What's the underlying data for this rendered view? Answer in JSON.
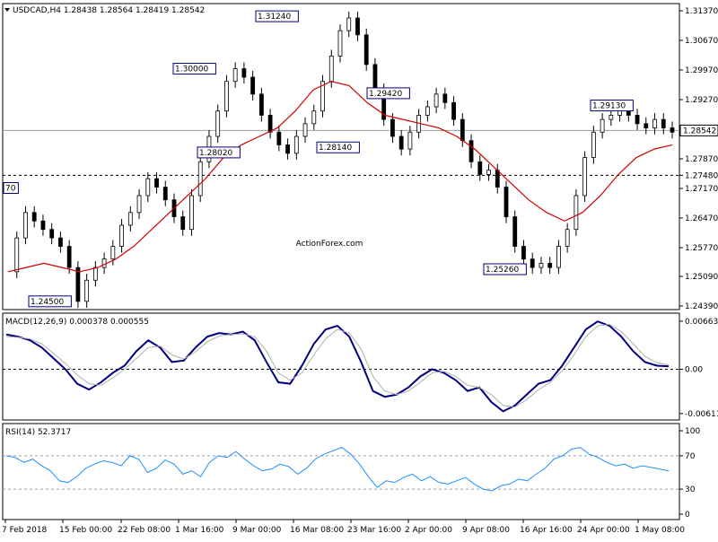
{
  "chart_data": [
    {
      "type": "candlestick",
      "symbol": "USDCAD,H4",
      "header_values": [
        "1.28438",
        "1.28564",
        "1.28419",
        "1.28542"
      ],
      "yaxis_ticks": [
        "1.31370",
        "1.30670",
        "1.29970",
        "1.29270",
        "1.28542",
        "1.27870",
        "1.27480",
        "1.27170",
        "1.26470",
        "1.25770",
        "1.25090",
        "1.24390"
      ],
      "ylim": [
        1.2439,
        1.3137
      ],
      "current_price": "1.28542",
      "horizontal_levels": [
        {
          "value": 1.2854,
          "label": "1.28542",
          "style": "solid-grey"
        },
        {
          "value": 1.2748,
          "label": "1.27480",
          "style": "dashed"
        }
      ],
      "annotations": [
        "70",
        "1.24500",
        "1.30000",
        "1.31240",
        "1.28020",
        "1.28140",
        "1.29420",
        "1.25260",
        "1.29130"
      ],
      "watermark": "ActionForex.com",
      "series": [
        {
          "name": "price",
          "description": "H4 candles",
          "path": [
            1.252,
            1.26,
            1.266,
            1.264,
            1.262,
            1.26,
            1.258,
            1.253,
            1.245,
            1.25,
            1.253,
            1.255,
            1.258,
            1.263,
            1.266,
            1.27,
            1.274,
            1.272,
            1.269,
            1.265,
            1.262,
            1.27,
            1.278,
            1.284,
            1.29,
            1.297,
            1.3,
            1.298,
            1.294,
            1.289,
            1.285,
            1.282,
            1.28,
            1.284,
            1.287,
            1.29,
            1.297,
            1.303,
            1.309,
            1.312,
            1.308,
            1.301,
            1.295,
            1.288,
            1.284,
            1.281,
            1.285,
            1.289,
            1.291,
            1.294,
            1.292,
            1.288,
            1.283,
            1.278,
            1.275,
            1.276,
            1.272,
            1.265,
            1.258,
            1.255,
            1.253,
            1.254,
            1.253,
            1.258,
            1.262,
            1.27,
            1.279,
            1.285,
            1.288,
            1.289,
            1.291,
            1.289,
            1.287,
            1.286,
            1.288,
            1.286,
            1.285
          ]
        },
        {
          "name": "moving average",
          "style": "red line",
          "path": [
            1.252,
            1.253,
            1.254,
            1.253,
            1.252,
            1.253,
            1.255,
            1.258,
            1.262,
            1.266,
            1.27,
            1.274,
            1.279,
            1.282,
            1.284,
            1.286,
            1.29,
            1.295,
            1.297,
            1.296,
            1.292,
            1.289,
            1.288,
            1.287,
            1.286,
            1.284,
            1.281,
            1.277,
            1.273,
            1.269,
            1.266,
            1.264,
            1.266,
            1.27,
            1.275,
            1.279,
            1.281,
            1.282
          ]
        }
      ],
      "xaxis_ticks": [
        "7 Feb 2018",
        "15 Feb 00:00",
        "22 Feb 08:00",
        "1 Mar 16:00",
        "9 Mar 00:00",
        "16 Mar 08:00",
        "23 Mar 16:00",
        "2 Apr 00:00",
        "9 Apr 08:00",
        "16 Apr 16:00",
        "24 Apr 00:00",
        "1 May 08:00"
      ]
    },
    {
      "type": "line",
      "title": "MACD(12,26,9) 0.000378 0.000555",
      "yaxis_ticks": [
        "0.006639",
        "0.00",
        "-0.006114"
      ],
      "ylim": [
        -0.0065,
        0.007
      ],
      "series": [
        {
          "name": "MACD",
          "color": "#000080",
          "values": [
            0.0048,
            0.0045,
            0.004,
            0.003,
            0.0015,
            0.0,
            -0.002,
            -0.0028,
            -0.0018,
            -0.0005,
            0.0005,
            0.0025,
            0.004,
            0.003,
            0.001,
            0.0012,
            0.003,
            0.0045,
            0.005,
            0.0048,
            0.0052,
            0.004,
            0.001,
            -0.0018,
            -0.002,
            0.0005,
            0.0035,
            0.0055,
            0.006,
            0.0045,
            0.001,
            -0.003,
            -0.0038,
            -0.0035,
            -0.0025,
            -0.001,
            0.0,
            -0.0005,
            -0.0015,
            -0.003,
            -0.0025,
            -0.0045,
            -0.0058,
            -0.005,
            -0.0035,
            -0.002,
            -0.0015,
            0.0005,
            0.003,
            0.0055,
            0.0066,
            0.006,
            0.0045,
            0.0025,
            0.001,
            0.0005,
            0.0004
          ]
        },
        {
          "name": "Signal",
          "color": "#b0b0b0",
          "values": [
            0.0045,
            0.0044,
            0.0042,
            0.0035,
            0.0022,
            0.0008,
            -0.0008,
            -0.002,
            -0.0022,
            -0.0012,
            0.0,
            0.0015,
            0.003,
            0.0032,
            0.002,
            0.0014,
            0.0024,
            0.0038,
            0.0046,
            0.0048,
            0.0049,
            0.0045,
            0.0025,
            -0.0005,
            -0.0015,
            -0.0005,
            0.002,
            0.0042,
            0.0055,
            0.005,
            0.0028,
            -0.001,
            -0.003,
            -0.0035,
            -0.003,
            -0.0018,
            -0.0005,
            -0.0003,
            -0.001,
            -0.0022,
            -0.0025,
            -0.0035,
            -0.005,
            -0.0052,
            -0.0042,
            -0.0028,
            -0.0018,
            -0.0002,
            0.002,
            0.0045,
            0.006,
            0.0062,
            0.0052,
            0.0035,
            0.0018,
            0.0009,
            0.0006
          ]
        }
      ]
    },
    {
      "type": "line",
      "title": "RSI(14) 52.3717",
      "yaxis_ticks": [
        "100",
        "70",
        "30",
        "0"
      ],
      "ylim": [
        0,
        100
      ],
      "levels": [
        70,
        30
      ],
      "series": [
        {
          "name": "RSI",
          "color": "#1e90ff",
          "values": [
            70,
            68,
            62,
            66,
            58,
            52,
            40,
            38,
            45,
            55,
            60,
            64,
            62,
            58,
            70,
            66,
            50,
            55,
            65,
            60,
            48,
            52,
            45,
            62,
            70,
            68,
            75,
            66,
            58,
            52,
            54,
            60,
            57,
            48,
            55,
            66,
            72,
            76,
            80,
            72,
            60,
            45,
            32,
            40,
            38,
            44,
            48,
            40,
            45,
            38,
            36,
            40,
            44,
            36,
            30,
            28,
            34,
            36,
            42,
            40,
            48,
            55,
            66,
            70,
            78,
            80,
            72,
            68,
            62,
            58,
            60,
            55,
            58,
            56,
            54,
            52
          ]
        }
      ]
    }
  ]
}
